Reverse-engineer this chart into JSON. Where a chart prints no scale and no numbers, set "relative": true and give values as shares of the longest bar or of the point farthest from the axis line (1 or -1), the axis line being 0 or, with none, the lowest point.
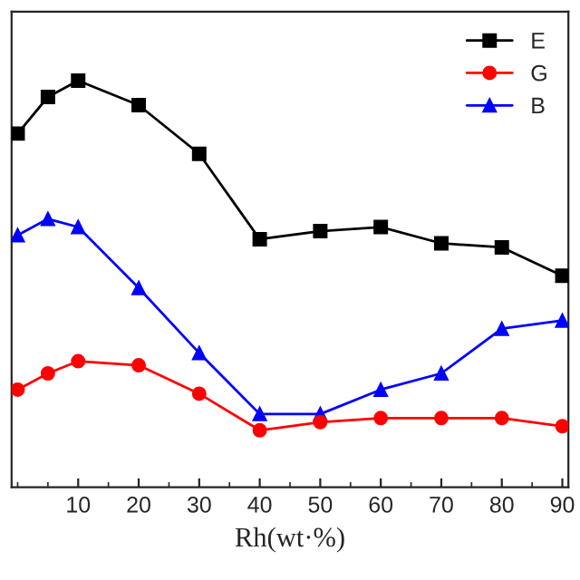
{
  "chart_data": {
    "type": "line",
    "xlabel": "Rh(wt·%)",
    "relative": true,
    "x": [
      0,
      5,
      10,
      20,
      30,
      40,
      50,
      60,
      70,
      80,
      90
    ],
    "xlim": [
      -1,
      91
    ],
    "xticks": [
      10,
      20,
      30,
      40,
      50,
      60,
      70,
      80,
      90
    ],
    "series": [
      {
        "name": "E",
        "color": "#000000",
        "marker": "square",
        "values": [
          0.87,
          0.96,
          1,
          0.94,
          0.82,
          0.61,
          0.63,
          0.64,
          0.6,
          0.59,
          0.52
        ]
      },
      {
        "name": "G",
        "color": "#ff0000",
        "marker": "circle",
        "values": [
          0.24,
          0.28,
          0.31,
          0.3,
          0.23,
          0.14,
          0.16,
          0.17,
          0.17,
          0.17,
          0.15
        ]
      },
      {
        "name": "B",
        "color": "#0000ff",
        "marker": "triangle",
        "values": [
          0.62,
          0.66,
          0.64,
          0.49,
          0.33,
          0.18,
          0.18,
          0.24,
          0.28,
          0.39,
          0.41
        ]
      }
    ],
    "legend": "top right",
    "grid": false,
    "line_style": "solid"
  }
}
